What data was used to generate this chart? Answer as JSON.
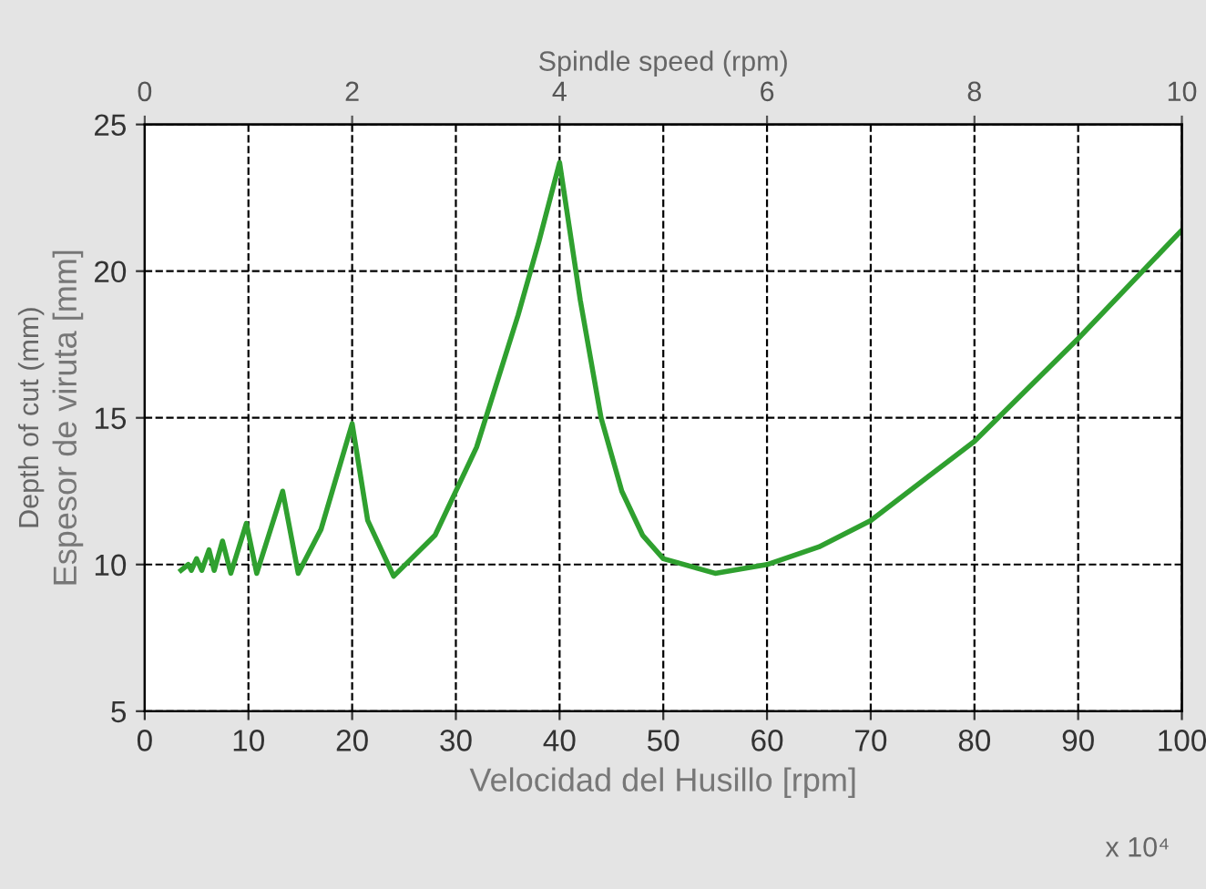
{
  "chart_data": {
    "type": "line",
    "xlabel": "Velocidad del Husillo [rpm]",
    "ylabel": "Espesor de viruta [mm]",
    "x2label": "Spindle speed (rpm)",
    "annotations": [
      "Depth of cut (mm)",
      "x 10⁴"
    ],
    "series": [
      {
        "color": "#2fa02f",
        "x": [
          3.5,
          4.2,
          4.5,
          5.0,
          5.5,
          6.2,
          6.7,
          7.5,
          8.3,
          9.8,
          10.8,
          13.3,
          14.8,
          17,
          20,
          21.5,
          24,
          28,
          32,
          36,
          38,
          40,
          42,
          44,
          46,
          48,
          50,
          55,
          60,
          65,
          70,
          80,
          90,
          100
        ],
        "values": [
          9.8,
          10.0,
          9.8,
          10.2,
          9.8,
          10.5,
          9.8,
          10.8,
          9.7,
          11.4,
          9.7,
          12.5,
          9.7,
          11.2,
          14.8,
          11.5,
          9.6,
          11,
          14,
          18.5,
          21,
          23.7,
          19,
          15,
          12.5,
          11,
          10.2,
          9.7,
          10.0,
          10.6,
          11.5,
          14.2,
          17.7,
          21.4
        ]
      }
    ],
    "xlim": [
      0,
      100
    ],
    "xticks": [
      0,
      10,
      20,
      30,
      40,
      50,
      60,
      70,
      80,
      90,
      100
    ],
    "x2lim": [
      0,
      10
    ],
    "x2ticks": [
      0,
      2,
      4,
      6,
      8,
      10
    ],
    "ylim": [
      5,
      25
    ],
    "yticks": [
      5,
      10,
      15,
      20,
      25
    ],
    "grid": true,
    "legend": false,
    "marker": "none",
    "line_style": "solid"
  }
}
